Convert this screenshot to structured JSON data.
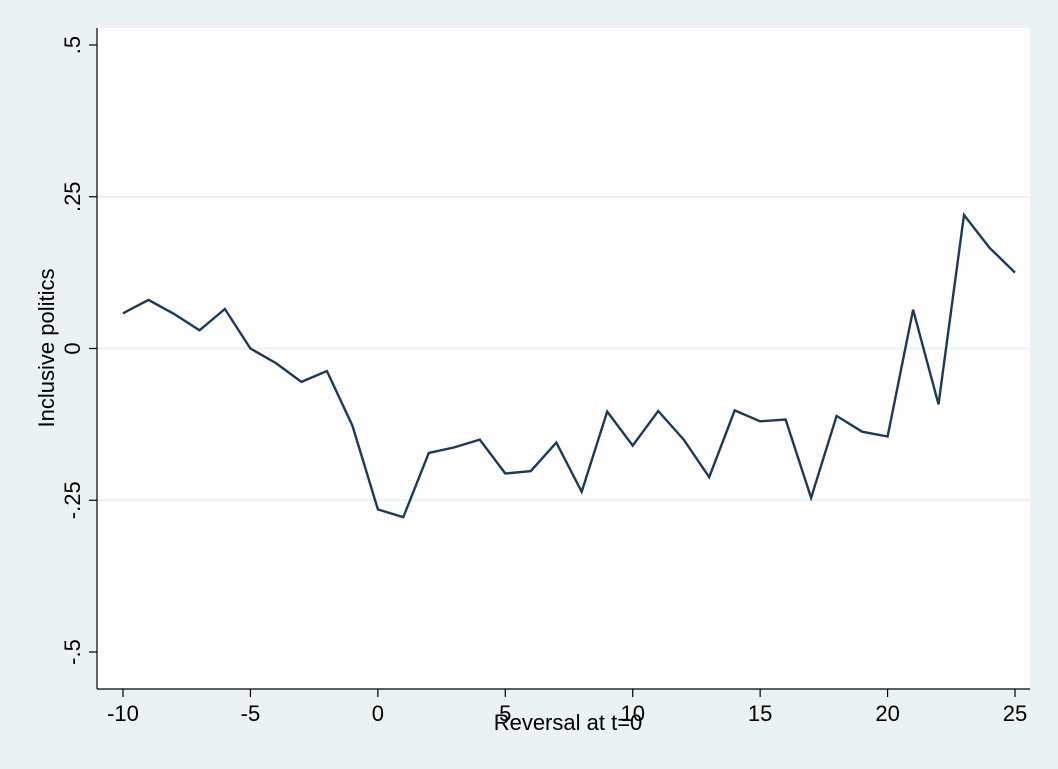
{
  "chart_data": {
    "type": "line",
    "title": "",
    "xlabel": "Reversal at t=0",
    "ylabel": "Inclusive politics",
    "xlim": [
      -10,
      25
    ],
    "ylim": [
      -0.5,
      0.5
    ],
    "x_ticks": [
      -10,
      -5,
      0,
      5,
      10,
      15,
      20,
      25
    ],
    "x_tick_labels": [
      "-10",
      "-5",
      "0",
      "5",
      "10",
      "15",
      "20",
      "25"
    ],
    "y_ticks": [
      -0.5,
      -0.25,
      0,
      0.25,
      0.5
    ],
    "y_tick_labels": [
      "-.5",
      "-.25",
      "0",
      ".25",
      ".5"
    ],
    "grid": "horizontal",
    "colors": {
      "background": "#eaf2f3",
      "plot_area": "#ffffff",
      "line": "#1a3a5c",
      "grid": "#eaf2f3"
    },
    "series": [
      {
        "x": [
          -10,
          -9,
          -8,
          -7,
          -6,
          -5,
          -4,
          -3,
          -2,
          -1,
          0,
          1,
          2,
          3,
          4,
          5,
          6,
          7,
          8,
          9,
          10,
          11,
          12,
          13,
          14,
          15,
          16,
          17,
          18,
          19,
          20,
          21,
          22,
          23,
          24,
          25
        ],
        "values": [
          0.058,
          0.08,
          0.057,
          0.03,
          0.065,
          0.0,
          -0.024,
          -0.055,
          -0.037,
          -0.127,
          -0.265,
          -0.278,
          -0.172,
          -0.163,
          -0.15,
          -0.206,
          -0.202,
          -0.155,
          -0.236,
          -0.104,
          -0.16,
          -0.103,
          -0.15,
          -0.212,
          -0.102,
          -0.12,
          -0.117,
          -0.246,
          -0.111,
          -0.137,
          -0.145,
          0.064,
          -0.092,
          0.22,
          0.166,
          0.125
        ]
      }
    ]
  }
}
